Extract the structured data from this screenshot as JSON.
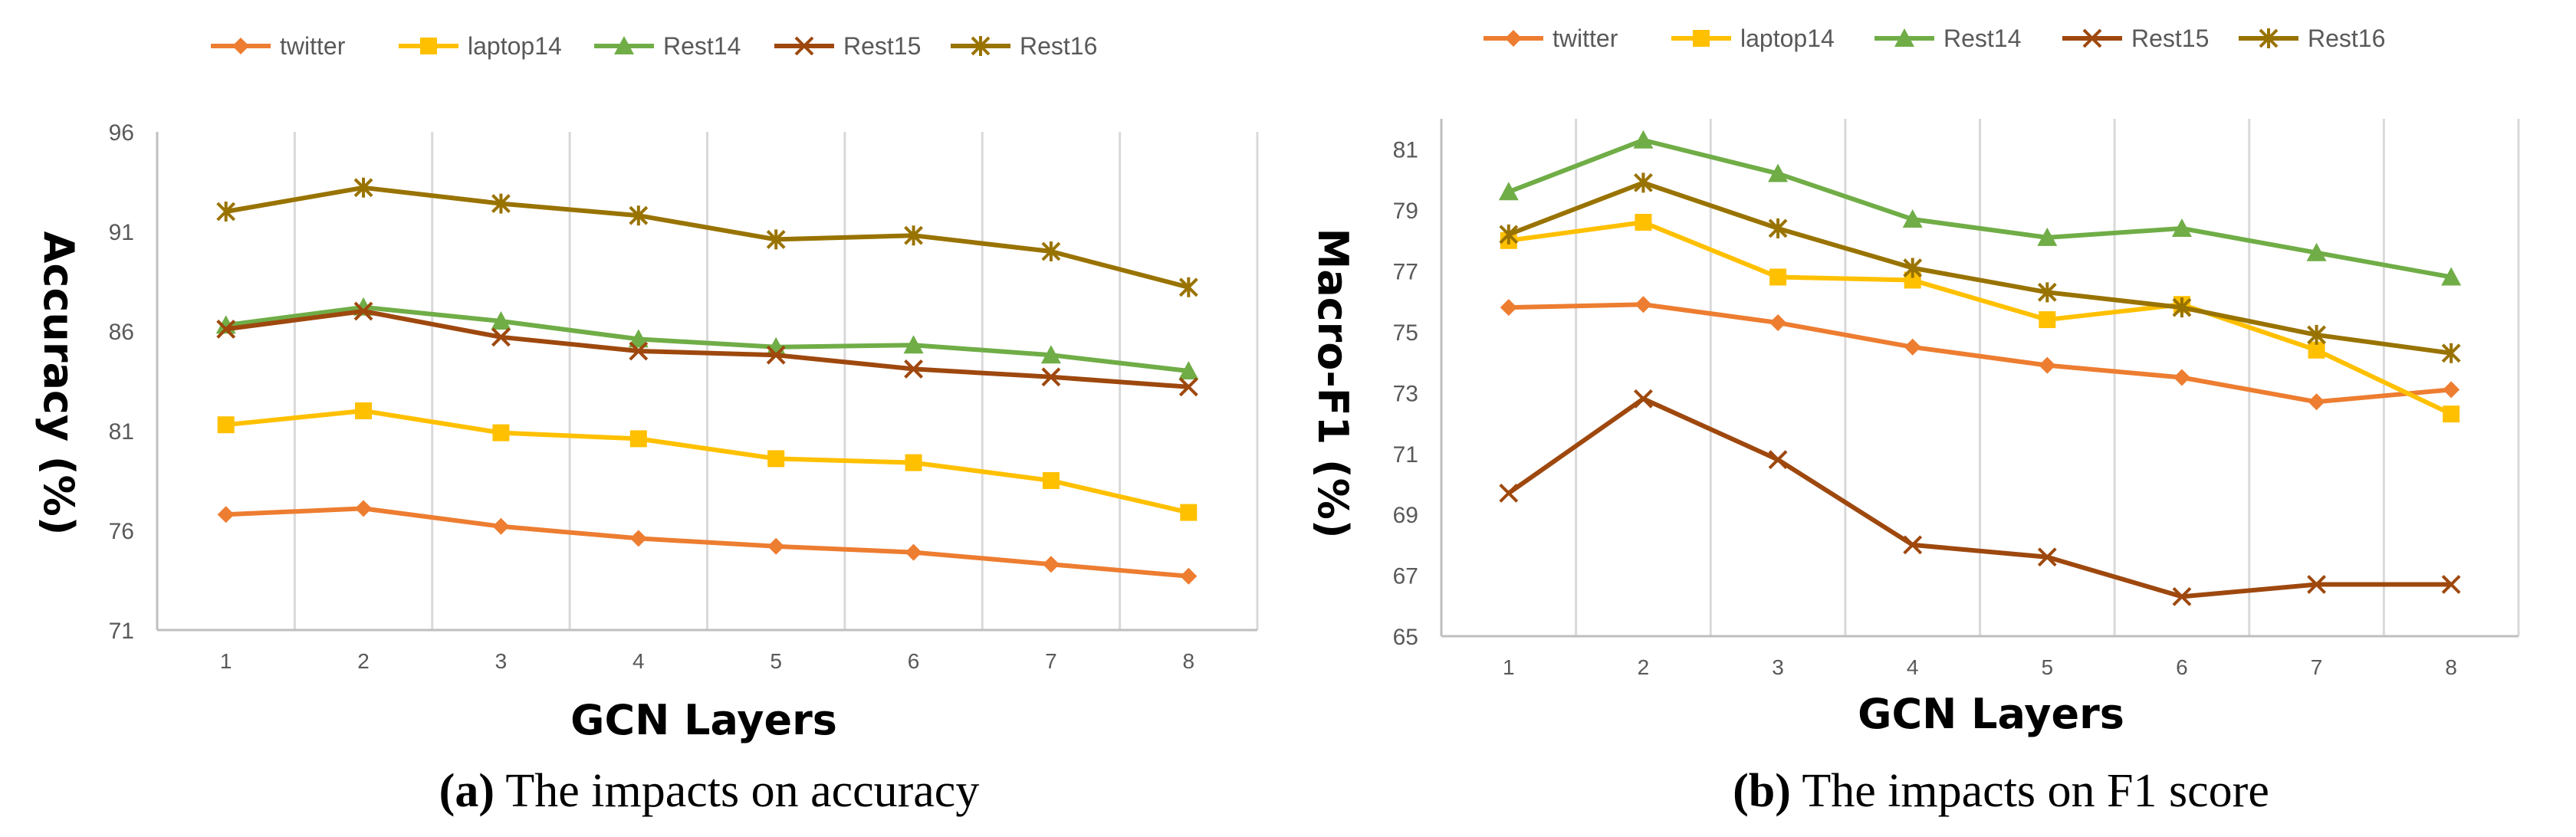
{
  "colors": {
    "twitter": "#ED7D31",
    "laptop14": "#FFC000",
    "Rest14": "#70AD47",
    "Rest15": "#9E480E",
    "Rest16": "#997300"
  },
  "chart_data": [
    {
      "type": "line",
      "id": "a",
      "title": "",
      "xlabel": "GCN Layers",
      "ylabel": "Accuracy (%)",
      "caption_bold": "(a)",
      "caption_text": " The impacts on accuracy",
      "categories": [
        "1",
        "2",
        "3",
        "4",
        "5",
        "6",
        "7",
        "8"
      ],
      "ylim": [
        71,
        96
      ],
      "yticks": [
        "71",
        "76",
        "81",
        "86",
        "91",
        "96"
      ],
      "legend_position": "top",
      "grid": "vertical",
      "series": [
        {
          "name": "twitter",
          "marker": "diamond",
          "values": [
            76.8,
            77.1,
            76.2,
            75.6,
            75.2,
            74.9,
            74.3,
            73.7
          ]
        },
        {
          "name": "laptop14",
          "marker": "square",
          "values": [
            81.3,
            82.0,
            80.9,
            80.6,
            79.6,
            79.4,
            78.5,
            76.9
          ]
        },
        {
          "name": "Rest14",
          "marker": "triangle",
          "values": [
            86.3,
            87.2,
            86.5,
            85.6,
            85.2,
            85.3,
            84.8,
            84.0
          ]
        },
        {
          "name": "Rest15",
          "marker": "x",
          "values": [
            86.1,
            87.0,
            85.7,
            85.0,
            84.8,
            84.1,
            83.7,
            83.2
          ]
        },
        {
          "name": "Rest16",
          "marker": "star",
          "values": [
            92.0,
            93.2,
            92.4,
            91.8,
            90.6,
            90.8,
            90.0,
            88.2
          ]
        }
      ]
    },
    {
      "type": "line",
      "id": "b",
      "title": "",
      "xlabel": "GCN Layers",
      "ylabel": "Macro-F1 (%)",
      "caption_bold": "(b)",
      "caption_text": " The impacts on F1 score",
      "categories": [
        "1",
        "2",
        "3",
        "4",
        "5",
        "6",
        "7",
        "8"
      ],
      "ylim": [
        65,
        82
      ],
      "yticks": [
        "65",
        "67",
        "69",
        "71",
        "73",
        "75",
        "77",
        "79",
        "81"
      ],
      "legend_position": "top",
      "grid": "vertical",
      "series": [
        {
          "name": "twitter",
          "marker": "diamond",
          "values": [
            75.8,
            75.9,
            75.3,
            74.5,
            73.9,
            73.5,
            72.7,
            73.1
          ]
        },
        {
          "name": "laptop14",
          "marker": "square",
          "values": [
            78.0,
            78.6,
            76.8,
            76.7,
            75.4,
            75.9,
            74.4,
            72.3
          ]
        },
        {
          "name": "Rest14",
          "marker": "triangle",
          "values": [
            79.6,
            81.3,
            80.2,
            78.7,
            78.1,
            78.4,
            77.6,
            76.8
          ]
        },
        {
          "name": "Rest15",
          "marker": "x",
          "values": [
            69.7,
            72.8,
            70.8,
            68.0,
            67.6,
            66.3,
            66.7,
            66.7
          ]
        },
        {
          "name": "Rest16",
          "marker": "star",
          "values": [
            78.2,
            79.9,
            78.4,
            77.1,
            76.3,
            75.8,
            74.9,
            74.3
          ]
        }
      ]
    }
  ]
}
